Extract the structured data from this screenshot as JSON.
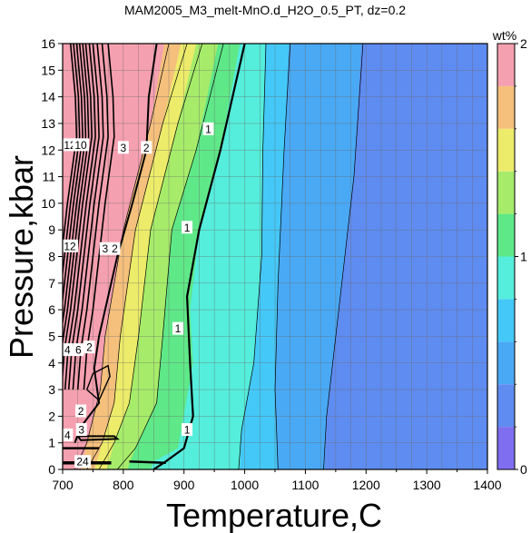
{
  "chart_data": {
    "type": "heatmap",
    "title": "MAM2005_M3_melt-MnO.d_H2O_0.5_PT, dz=0.2",
    "xlabel": "Temperature,C",
    "ylabel": "Pressure,kbar",
    "xlim": [
      700,
      1400
    ],
    "ylim": [
      0,
      16
    ],
    "xticks": [
      "700",
      "800",
      "900",
      "1000",
      "1100",
      "1200",
      "1300",
      "1400"
    ],
    "yticks": [
      "0",
      "1",
      "2",
      "3",
      "4",
      "5",
      "6",
      "7",
      "8",
      "9",
      "10",
      "11",
      "12",
      "13",
      "14",
      "15",
      "16"
    ],
    "grid": true,
    "colorbar": {
      "label": "wt%",
      "range": [
        0,
        2
      ],
      "ticks": [
        "0",
        "1",
        "2"
      ],
      "levels": [
        {
          "from": 0.0,
          "to": 0.2,
          "color": "#7f6ef0"
        },
        {
          "from": 0.2,
          "to": 0.4,
          "color": "#5f8cf0"
        },
        {
          "from": 0.4,
          "to": 0.6,
          "color": "#4aa9f4"
        },
        {
          "from": 0.6,
          "to": 0.8,
          "color": "#44c8f8"
        },
        {
          "from": 0.8,
          "to": 1.0,
          "color": "#55eddb"
        },
        {
          "from": 1.0,
          "to": 1.2,
          "color": "#5fe888"
        },
        {
          "from": 1.2,
          "to": 1.4,
          "color": "#a6ec6a"
        },
        {
          "from": 1.4,
          "to": 1.6,
          "color": "#ecec6a"
        },
        {
          "from": 1.6,
          "to": 1.8,
          "color": "#f5c07c"
        },
        {
          "from": 1.8,
          "to": 2.0,
          "color": "#f5a0b0"
        }
      ]
    },
    "contour_labels": [
      {
        "text": "1",
        "x": 940,
        "y": 12.8
      },
      {
        "text": "1",
        "x": 905,
        "y": 9.1
      },
      {
        "text": "1",
        "x": 890,
        "y": 5.3
      },
      {
        "text": "1",
        "x": 905,
        "y": 1.5
      },
      {
        "text": "2",
        "x": 838,
        "y": 12.1
      },
      {
        "text": "3",
        "x": 800,
        "y": 12.1
      },
      {
        "text": "12",
        "x": 712,
        "y": 12.2
      },
      {
        "text": "10",
        "x": 730,
        "y": 12.2
      },
      {
        "text": "2",
        "x": 786,
        "y": 8.3
      },
      {
        "text": "3",
        "x": 770,
        "y": 8.3
      },
      {
        "text": "12",
        "x": 712,
        "y": 8.4
      },
      {
        "text": "2",
        "x": 744,
        "y": 4.6
      },
      {
        "text": "6",
        "x": 726,
        "y": 4.5
      },
      {
        "text": "4",
        "x": 708,
        "y": 4.5
      },
      {
        "text": "2",
        "x": 730,
        "y": 2.2
      },
      {
        "text": "3",
        "x": 731,
        "y": 1.5
      },
      {
        "text": "4",
        "x": 708,
        "y": 1.3
      },
      {
        "text": "24",
        "x": 733,
        "y": 0.3
      }
    ]
  }
}
